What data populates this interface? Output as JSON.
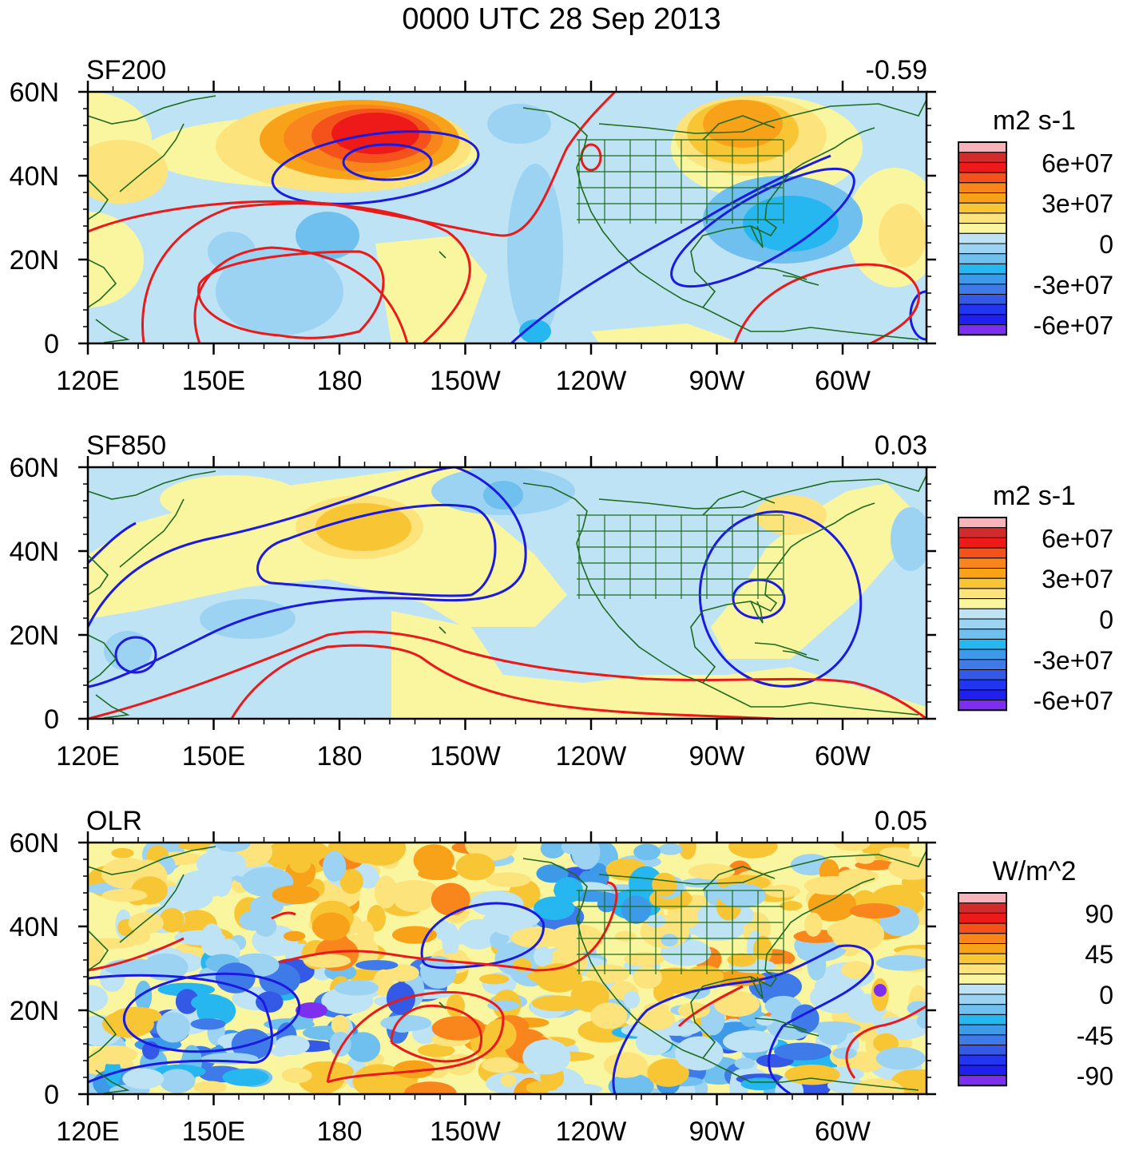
{
  "title": "0000 UTC 28 Sep 2013",
  "axes": {
    "x_ticks": [
      "120E",
      "150E",
      "180",
      "150W",
      "120W",
      "90W",
      "60W"
    ],
    "y_ticks": [
      "60N",
      "40N",
      "20N",
      "0"
    ]
  },
  "panels": [
    {
      "id": "sf200",
      "variable": "SF200",
      "correlation": "-0.59",
      "colorbar": {
        "unit": "m2 s-1",
        "labels": [
          "6e+07",
          "3e+07",
          "0",
          "-3e+07",
          "-6e+07"
        ]
      }
    },
    {
      "id": "sf850",
      "variable": "SF850",
      "correlation": "0.03",
      "colorbar": {
        "unit": "m2 s-1",
        "labels": [
          "6e+07",
          "3e+07",
          "0",
          "-3e+07",
          "-6e+07"
        ]
      }
    },
    {
      "id": "olr",
      "variable": "OLR",
      "correlation": "0.05",
      "colorbar": {
        "unit": "W/m^2",
        "labels": [
          "90",
          "45",
          "0",
          "-45",
          "-90"
        ]
      }
    }
  ],
  "colors": {
    "palette": [
      "#F8B2BA",
      "#D12B2B",
      "#EE1A1A",
      "#F5521B",
      "#F8861C",
      "#F8A21A",
      "#F8C635",
      "#FCE37C",
      "#FAF6A0",
      "#BDE3F5",
      "#9CD3F3",
      "#6FC0EE",
      "#27B7F0",
      "#3C9AE9",
      "#3E7BE9",
      "#3559E7",
      "#2235F0",
      "#1F1FF0",
      "#7C2FEF"
    ],
    "positive_contour": "#E81A1A",
    "negative_contour": "#1A1AE0",
    "coastline": "#1E6B1E"
  }
}
